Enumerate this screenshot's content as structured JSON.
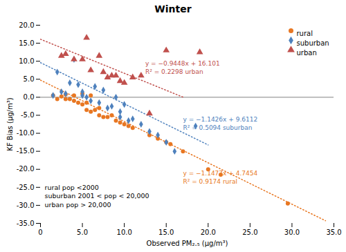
{
  "chart_data": {
    "type": "scatter",
    "title": "Winter",
    "xlabel": "Observed PM₂.₅ (μg/m³)",
    "ylabel": "KF Bias (μg/m³)",
    "xlim": [
      0,
      35
    ],
    "ylim": [
      -35,
      20
    ],
    "xticks": [
      0,
      {
        "value": 5,
        "label": "5.0"
      },
      {
        "value": 10,
        "label": "10.0"
      },
      {
        "value": 15,
        "label": "15.0"
      },
      {
        "value": 20,
        "label": "20.0"
      },
      {
        "value": 25,
        "label": "25.0"
      },
      {
        "value": 30,
        "label": "30.0"
      },
      {
        "value": 35,
        "label": "35.0"
      }
    ],
    "yticks": [
      {
        "value": -35,
        "label": "-35.0"
      },
      {
        "value": -30,
        "label": "-30.0"
      },
      {
        "value": -25,
        "label": "-25.0"
      },
      {
        "value": -20,
        "label": "-20.0"
      },
      {
        "value": -15,
        "label": "-15.0"
      },
      {
        "value": -10,
        "label": "-10.0"
      },
      {
        "value": -5,
        "label": "-5.0"
      },
      {
        "value": 0,
        "label": "0.0"
      },
      {
        "value": 5,
        "label": "5.0"
      },
      {
        "value": 10,
        "label": "10.0"
      },
      {
        "value": 15,
        "label": "15.0"
      },
      {
        "value": 20,
        "label": "20.0"
      }
    ],
    "grid": false,
    "legend": "upper right",
    "hlines": [
      0
    ],
    "series": [
      {
        "name": "rural",
        "color": "#E87722",
        "marker": "circle",
        "x": [
          1.5,
          2.0,
          2.5,
          3.0,
          3.0,
          3.5,
          4.0,
          4.0,
          4.5,
          5.0,
          5.0,
          5.5,
          5.5,
          6.0,
          6.0,
          6.5,
          7.0,
          7.0,
          7.5,
          8.0,
          8.5,
          9.0,
          9.5,
          10.0,
          10.5,
          11.0,
          13.0,
          14.0,
          15.0,
          15.5,
          17.0,
          20.0,
          21.5,
          29.5
        ],
        "values": [
          0.5,
          -0.5,
          0.2,
          -0.5,
          0.8,
          -0.5,
          0.5,
          -1.0,
          -1.5,
          1.0,
          -2.0,
          -1.5,
          -3.5,
          0.5,
          -4.0,
          -3.5,
          -3.0,
          -5.0,
          -5.5,
          -5.5,
          -5.0,
          -6.5,
          -7.0,
          -7.5,
          -8.0,
          -8.5,
          -10.5,
          -11.5,
          -12.5,
          -13.0,
          -15.0,
          -20.0,
          -21.5,
          -29.5
        ],
        "trend": {
          "x": [
            0,
            34
          ],
          "values": [
            4.7454,
            -34.2764
          ],
          "line_style": "dotted"
        }
      },
      {
        "name": "suburban",
        "color": "#4E81BD",
        "marker": "diamond",
        "x": [
          1.5,
          2.0,
          2.5,
          3.0,
          3.5,
          4.0,
          4.5,
          5.0,
          5.0,
          5.5,
          6.0,
          6.5,
          7.0,
          7.5,
          8.0,
          8.5,
          9.0,
          9.5,
          9.5,
          10.0,
          10.5,
          11.0,
          12.0,
          13.0,
          14.0,
          15.0,
          16.0,
          18.5
        ],
        "values": [
          0.5,
          7.0,
          1.5,
          1.0,
          4.0,
          10.5,
          3.5,
          0.5,
          1.5,
          0.0,
          -1.0,
          3.0,
          -1.5,
          2.0,
          -3.0,
          -2.5,
          0.0,
          -4.0,
          -5.5,
          -2.0,
          -6.5,
          -6.0,
          -7.5,
          -9.5,
          -10.5,
          -12.5,
          -15.0,
          -8.0
        ],
        "trend": {
          "x": [
            0,
            20
          ],
          "values": [
            9.6112,
            -13.2408
          ],
          "line_style": "dotted"
        }
      },
      {
        "name": "urban",
        "color": "#C0504D",
        "marker": "triangle",
        "x": [
          2.5,
          3.0,
          4.0,
          5.0,
          5.5,
          6.0,
          7.0,
          7.5,
          8.0,
          8.5,
          9.0,
          9.5,
          10.0,
          11.0,
          12.0,
          13.0,
          15.0,
          19.0
        ],
        "values": [
          11.5,
          12.0,
          10.5,
          10.5,
          16.5,
          7.5,
          11.5,
          7.0,
          5.5,
          6.0,
          6.0,
          4.5,
          4.0,
          5.5,
          6.0,
          -4.5,
          13.0,
          12.5
        ],
        "trend": {
          "x": [
            0,
            17
          ],
          "values": [
            16.101,
            0.0394
          ],
          "line_style": "dotted"
        }
      }
    ],
    "equations": [
      {
        "text": "y = −0.9448x + 16.101\nR² = 0.2298 urban",
        "x": 12.5,
        "y": 6.5,
        "color": "#C0504D"
      },
      {
        "text": "y = −1.1426x + 9.6112\nR² = 0.5094 suburban",
        "x": 17.0,
        "y": -9.0,
        "color": "#4E81BD"
      },
      {
        "text": "y = −1.1477x + 4.7454\nR² = 0.9174 rural",
        "x": 17.0,
        "y": -24.0,
        "color": "#E87722"
      }
    ],
    "note": {
      "text": "rural pop <2000\nsuburban 2001 < pop < 20,000\nurban pop > 20,000",
      "x": 0.5,
      "y": -24.0,
      "color": "black"
    }
  }
}
